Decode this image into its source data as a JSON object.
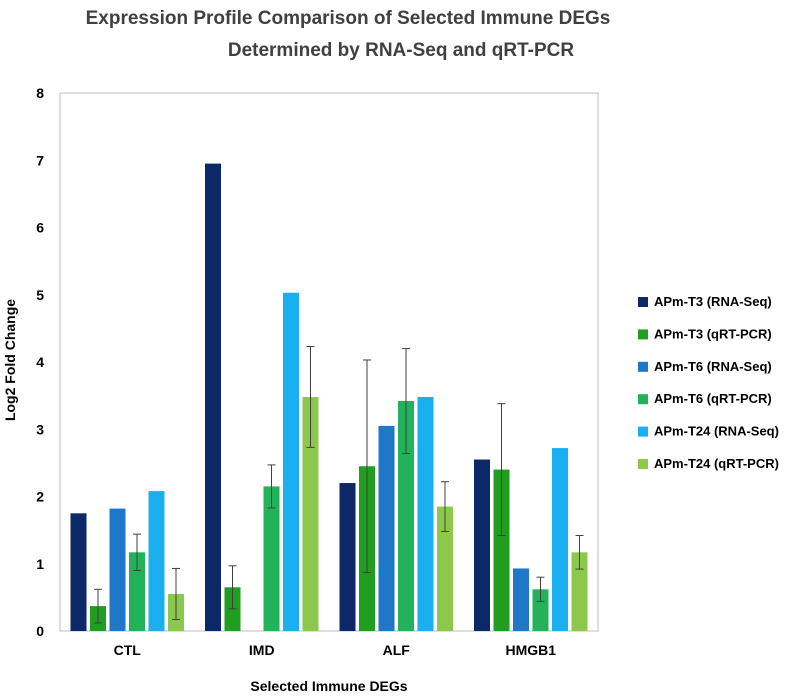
{
  "chart_data": {
    "type": "bar",
    "title": [
      "Expression Profile Comparison of Selected Immune DEGs",
      "Determined by RNA-Seq and qRT-PCR"
    ],
    "xlabel": "Selected Immune DEGs",
    "ylabel": "Log2 Fold Change",
    "ylim": [
      0,
      8
    ],
    "yticks": [
      "0",
      "1",
      "2",
      "3",
      "4",
      "5",
      "6",
      "7",
      "8"
    ],
    "categories": [
      "CTL",
      "IMD",
      "ALF",
      "HMGB1"
    ],
    "legend_position": "right",
    "series": [
      {
        "name": "APm-T3 (RNA-Seq)",
        "color": "#0d2866",
        "values": [
          1.75,
          6.95,
          2.2,
          2.55
        ],
        "errors": [
          null,
          null,
          null,
          null
        ]
      },
      {
        "name": "APm-T3 (qRT-PCR)",
        "color": "#1f9e1f",
        "values": [
          0.37,
          0.65,
          2.45,
          2.4
        ],
        "errors": [
          0.25,
          0.32,
          1.58,
          0.98
        ]
      },
      {
        "name": "APm-T6 (RNA-Seq)",
        "color": "#1f77c8",
        "values": [
          1.82,
          null,
          3.05,
          0.93
        ],
        "errors": [
          null,
          null,
          null,
          null
        ]
      },
      {
        "name": "APm-T6 (qRT-PCR)",
        "color": "#22b35a",
        "values": [
          1.17,
          2.15,
          3.42,
          0.62
        ],
        "errors": [
          0.27,
          0.32,
          0.78,
          0.18
        ]
      },
      {
        "name": "APm-T24 (RNA-Seq)",
        "color": "#1aafee",
        "values": [
          2.08,
          5.03,
          3.48,
          2.72
        ],
        "errors": [
          null,
          null,
          null,
          null
        ]
      },
      {
        "name": "APm-T24 (qRT-PCR)",
        "color": "#8cc84b",
        "values": [
          0.55,
          3.48,
          1.85,
          1.17
        ],
        "errors": [
          0.38,
          0.75,
          0.37,
          0.25
        ]
      }
    ]
  }
}
